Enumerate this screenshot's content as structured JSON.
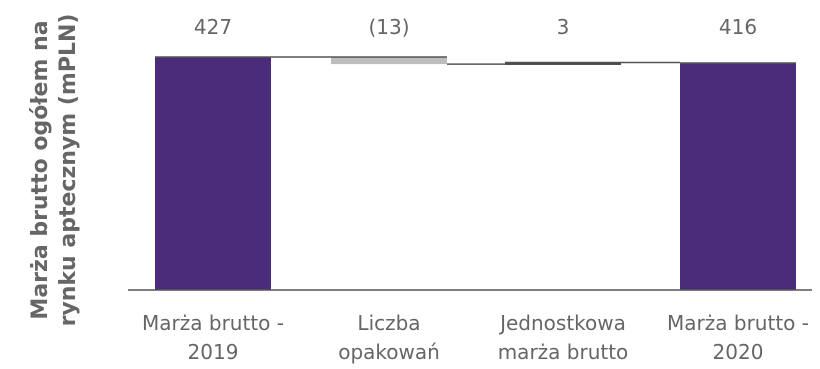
{
  "chart_data": {
    "type": "waterfall",
    "ylabel_lines": [
      "Marża brutto ogółem na",
      "rynku aptecznym (mPLN)"
    ],
    "categories": [
      {
        "lines": [
          "Marża brutto -",
          "2019"
        ]
      },
      {
        "lines": [
          "Liczba",
          "opakowań"
        ]
      },
      {
        "lines": [
          "Jednostkowa",
          "marża brutto"
        ]
      },
      {
        "lines": [
          "Marża brutto -",
          "2020"
        ]
      }
    ],
    "bars": [
      {
        "kind": "total",
        "value": 427,
        "label": "427"
      },
      {
        "kind": "delta",
        "value": -13,
        "label": "(13)"
      },
      {
        "kind": "delta",
        "value": 3,
        "label": "3"
      },
      {
        "kind": "total",
        "value": 416,
        "label": "416"
      }
    ],
    "ylim": [
      0,
      427
    ],
    "grid": false,
    "colors": {
      "total": "#4b2c7a",
      "decrease": "#bdbdbd",
      "increase": "#4a4a4a",
      "connector": "#555555",
      "axis": "#555555",
      "text": "#666666"
    }
  }
}
